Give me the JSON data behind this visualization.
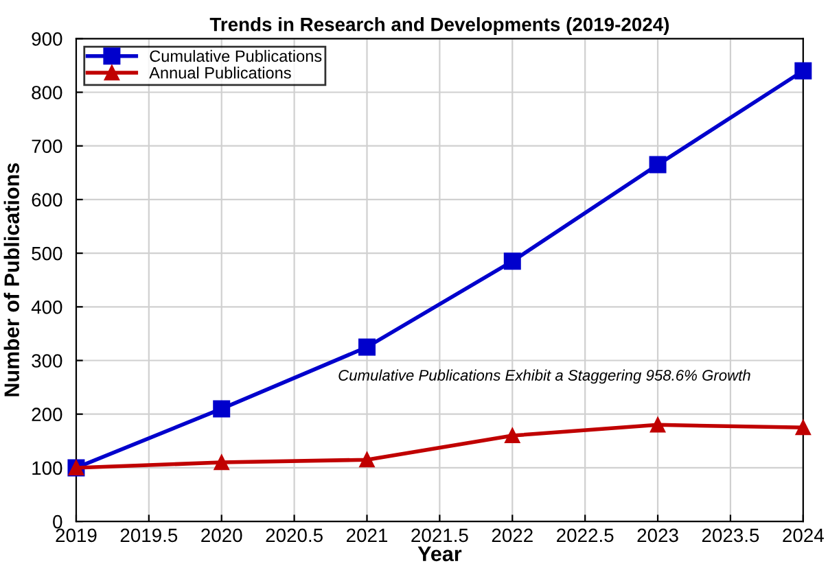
{
  "chart_data": {
    "type": "line",
    "title": "Trends in Research and Developments (2019-2024)",
    "xlabel": "Year",
    "ylabel": "Number of Publications",
    "x": [
      2019,
      2020,
      2021,
      2022,
      2023,
      2024
    ],
    "series": [
      {
        "name": "Cumulative Publications",
        "color": "#0000cc",
        "values": [
          100,
          210,
          325,
          485,
          665,
          840
        ],
        "marker": "square"
      },
      {
        "name": "Annual Publications",
        "color": "#c00000",
        "values": [
          100,
          110,
          115,
          160,
          180,
          175
        ],
        "marker": "triangle"
      }
    ],
    "xlim": [
      2019,
      2024
    ],
    "xticks": [
      2019,
      2019.5,
      2020,
      2020.5,
      2021,
      2021.5,
      2022,
      2022.5,
      2023,
      2023.5,
      2024
    ],
    "ylim": [
      0,
      900
    ],
    "yticks": [
      0,
      100,
      200,
      300,
      400,
      500,
      600,
      700,
      800,
      900
    ],
    "grid": true,
    "legend": "top left",
    "line_style": "solid",
    "annotations": [
      "Cumulative Publications Exhibit a Staggering 958.6% Growth"
    ]
  }
}
